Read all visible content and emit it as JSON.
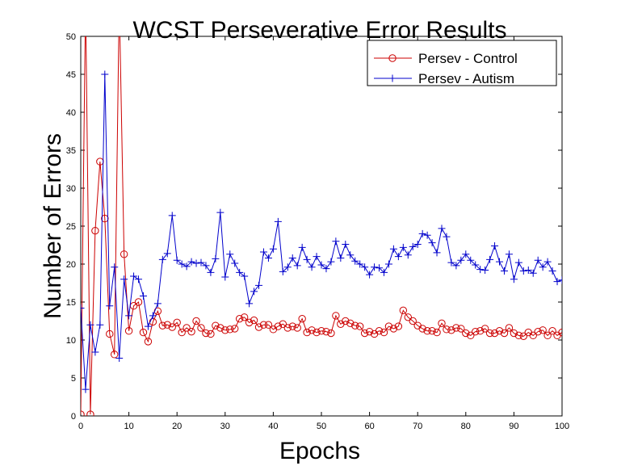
{
  "chart_data": {
    "type": "line",
    "title": "WCST Perseverative Error Results",
    "xlabel": "Epochs",
    "ylabel": "Number of Errors",
    "xlim": [
      0,
      100
    ],
    "ylim": [
      0,
      50
    ],
    "xticks": [
      0,
      10,
      20,
      30,
      40,
      50,
      60,
      70,
      80,
      90,
      100
    ],
    "yticks": [
      0,
      5,
      10,
      15,
      20,
      25,
      30,
      35,
      40,
      45,
      50
    ],
    "grid": false,
    "legend_position": "top-right",
    "series": [
      {
        "name": "Persev - Control",
        "color": "#cc0000",
        "marker": "circle",
        "x": [
          0,
          1,
          2,
          3,
          4,
          5,
          6,
          7,
          8,
          9,
          10,
          11,
          12,
          13,
          14,
          15,
          16,
          17,
          18,
          19,
          20,
          21,
          22,
          23,
          24,
          25,
          26,
          27,
          28,
          29,
          30,
          31,
          32,
          33,
          34,
          35,
          36,
          37,
          38,
          39,
          40,
          41,
          42,
          43,
          44,
          45,
          46,
          47,
          48,
          49,
          50,
          51,
          52,
          53,
          54,
          55,
          56,
          57,
          58,
          59,
          60,
          61,
          62,
          63,
          64,
          65,
          66,
          67,
          68,
          69,
          70,
          71,
          72,
          73,
          74,
          75,
          76,
          77,
          78,
          79,
          80,
          81,
          82,
          83,
          84,
          85,
          86,
          87,
          88,
          89,
          90,
          91,
          92,
          93,
          94,
          95,
          96,
          97,
          98,
          99,
          100
        ],
        "y": [
          0.2,
          55,
          0.2,
          24.4,
          33.5,
          26,
          10.8,
          8.1,
          55,
          21.3,
          11.2,
          14.5,
          15,
          11,
          9.8,
          12.4,
          13.8,
          11.9,
          12,
          11.7,
          12.3,
          11,
          11.6,
          11.1,
          12.5,
          11.6,
          10.9,
          10.8,
          11.9,
          11.6,
          11.3,
          11.4,
          11.5,
          12.8,
          13,
          12.3,
          12.6,
          11.7,
          12,
          12,
          11.4,
          11.8,
          12.1,
          11.6,
          11.8,
          11.6,
          12.8,
          11,
          11.3,
          11,
          11.2,
          11.1,
          10.9,
          13.2,
          12.1,
          12.5,
          12.2,
          11.9,
          11.8,
          10.9,
          11.1,
          10.8,
          11.2,
          11,
          11.8,
          11.5,
          11.8,
          13.9,
          13,
          12.5,
          11.9,
          11.5,
          11.2,
          11.2,
          11,
          12.2,
          11.4,
          11.3,
          11.6,
          11.5,
          10.9,
          10.6,
          11.1,
          11.2,
          11.5,
          10.9,
          10.9,
          11.2,
          10.9,
          11.6,
          10.9,
          10.6,
          10.5,
          11,
          10.6,
          11.1,
          11.3,
          10.6,
          11.2,
          10.6,
          11
        ]
      },
      {
        "name": "Persev - Autism",
        "color": "#0000cc",
        "marker": "plus",
        "x": [
          0,
          1,
          2,
          3,
          4,
          5,
          6,
          7,
          8,
          9,
          10,
          11,
          12,
          13,
          14,
          15,
          16,
          17,
          18,
          19,
          20,
          21,
          22,
          23,
          24,
          25,
          26,
          27,
          28,
          29,
          30,
          31,
          32,
          33,
          34,
          35,
          36,
          37,
          38,
          39,
          40,
          41,
          42,
          43,
          44,
          45,
          46,
          47,
          48,
          49,
          50,
          51,
          52,
          53,
          54,
          55,
          56,
          57,
          58,
          59,
          60,
          61,
          62,
          63,
          64,
          65,
          66,
          67,
          68,
          69,
          70,
          71,
          72,
          73,
          74,
          75,
          76,
          77,
          78,
          79,
          80,
          81,
          82,
          83,
          84,
          85,
          86,
          87,
          88,
          89,
          90,
          91,
          92,
          93,
          94,
          95,
          96,
          97,
          98,
          99,
          100
        ],
        "y": [
          14.2,
          3.5,
          12,
          8.4,
          12,
          45,
          14.5,
          19.6,
          7.6,
          18,
          13.2,
          18.4,
          18,
          15.8,
          11.8,
          13.2,
          14.8,
          20.6,
          21.4,
          26.4,
          20.5,
          20,
          19.7,
          20.3,
          20.1,
          20.2,
          19.8,
          18.9,
          20.7,
          26.8,
          18.3,
          21.3,
          20.1,
          18.9,
          18.4,
          14.8,
          16.4,
          17.2,
          21.6,
          20.8,
          22,
          25.6,
          19,
          19.6,
          20.8,
          19.8,
          22.2,
          20.6,
          19.6,
          21,
          19.9,
          19.4,
          20.3,
          23,
          20.8,
          22.6,
          21.2,
          20.4,
          20,
          19.6,
          18.6,
          19.6,
          19.5,
          18.9,
          20,
          22,
          21,
          22.2,
          21.2,
          22.3,
          22.6,
          24,
          23.8,
          22.8,
          21.5,
          24.7,
          23.6,
          20.2,
          19.8,
          20.5,
          21.3,
          20.5,
          19.9,
          19.3,
          19.2,
          20.6,
          22.4,
          20.3,
          19.1,
          21.3,
          18,
          20.2,
          19.1,
          19.2,
          18.8,
          20.5,
          19.6,
          20.3,
          19.1,
          17.7,
          17.9
        ]
      }
    ]
  }
}
